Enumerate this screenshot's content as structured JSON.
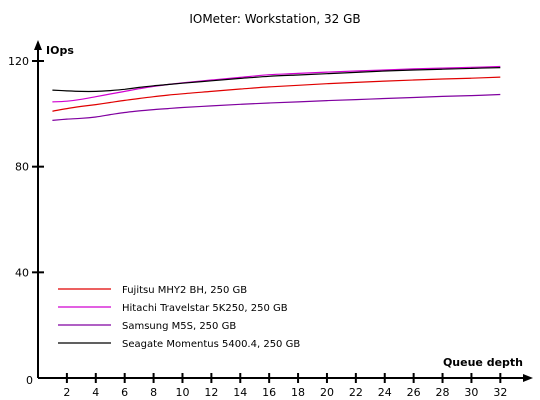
{
  "chart_data": {
    "type": "line",
    "title": "IOMeter: Workstation, 32 GB",
    "xlabel": "Queue depth",
    "ylabel": "IOps",
    "origin_label": "0",
    "x_ticks": [
      2,
      4,
      6,
      8,
      10,
      12,
      14,
      16,
      18,
      20,
      22,
      24,
      26,
      28,
      30,
      32
    ],
    "y_ticks": [
      40,
      80,
      120
    ],
    "xlim": [
      0,
      33
    ],
    "ylim": [
      0,
      120
    ],
    "grid": false,
    "legend_position": "bottom-left",
    "x": [
      1,
      2,
      3,
      4,
      5,
      6,
      7,
      8,
      9,
      10,
      12,
      14,
      16,
      18,
      20,
      22,
      24,
      26,
      28,
      30,
      32
    ],
    "series": [
      {
        "name": "Fujitsu MHY2 BH, 250 GB",
        "color": "#e00000",
        "values": [
          101,
          102,
          102.8,
          103.5,
          104.3,
          105.1,
          105.8,
          106.5,
          107.1,
          107.6,
          108.5,
          109.4,
          110.2,
          110.8,
          111.4,
          111.9,
          112.4,
          112.8,
          113.2,
          113.5,
          113.9
        ]
      },
      {
        "name": "Hitachi Travelstar 5K250, 250 GB",
        "color": "#d000d0",
        "values": [
          104.5,
          104.8,
          105.5,
          106.5,
          107.5,
          108.5,
          109.5,
          110.4,
          111.1,
          111.7,
          112.8,
          113.8,
          114.8,
          115.3,
          115.8,
          116.2,
          116.6,
          117,
          117.3,
          117.6,
          117.9
        ]
      },
      {
        "name": "Samsung M5S, 250 GB",
        "color": "#8000a0",
        "values": [
          97.5,
          98,
          98.3,
          98.8,
          99.7,
          100.5,
          101.1,
          101.6,
          102,
          102.4,
          103,
          103.6,
          104.1,
          104.5,
          105,
          105.4,
          105.8,
          106.2,
          106.6,
          106.9,
          107.3
        ]
      },
      {
        "name": "Seagate Momentus 5400.4, 250 GB",
        "color": "#000000",
        "values": [
          109,
          108.7,
          108.5,
          108.5,
          108.8,
          109.3,
          110,
          110.6,
          111.1,
          111.6,
          112.5,
          113.4,
          114.2,
          114.7,
          115.2,
          115.7,
          116.2,
          116.6,
          116.9,
          117.2,
          117.5
        ]
      }
    ]
  }
}
